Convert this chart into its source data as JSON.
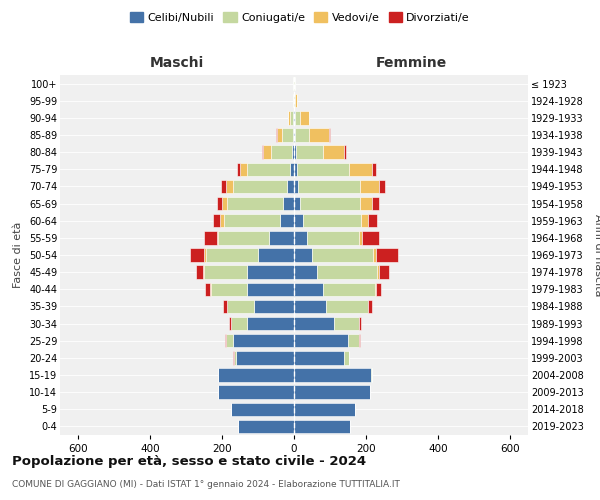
{
  "age_groups": [
    "0-4",
    "5-9",
    "10-14",
    "15-19",
    "20-24",
    "25-29",
    "30-34",
    "35-39",
    "40-44",
    "45-49",
    "50-54",
    "55-59",
    "60-64",
    "65-69",
    "70-74",
    "75-79",
    "80-84",
    "85-89",
    "90-94",
    "95-99",
    "100+"
  ],
  "birth_years": [
    "2019-2023",
    "2014-2018",
    "2009-2013",
    "2004-2008",
    "1999-2003",
    "1994-1998",
    "1989-1993",
    "1984-1988",
    "1979-1983",
    "1974-1978",
    "1969-1973",
    "1964-1968",
    "1959-1963",
    "1954-1958",
    "1949-1953",
    "1944-1948",
    "1939-1943",
    "1934-1938",
    "1929-1933",
    "1924-1928",
    "≤ 1923"
  ],
  "male": {
    "celibi": [
      155,
      175,
      210,
      210,
      160,
      170,
      130,
      110,
      130,
      130,
      100,
      70,
      40,
      30,
      20,
      10,
      5,
      3,
      2,
      1,
      1
    ],
    "coniugati": [
      0,
      0,
      1,
      2,
      8,
      20,
      45,
      75,
      100,
      120,
      145,
      140,
      155,
      155,
      150,
      120,
      60,
      30,
      10,
      2,
      1
    ],
    "vedovi": [
      0,
      0,
      0,
      0,
      0,
      0,
      0,
      1,
      2,
      3,
      5,
      5,
      10,
      15,
      20,
      20,
      20,
      15,
      5,
      1,
      0
    ],
    "divorziati": [
      0,
      0,
      0,
      0,
      1,
      2,
      5,
      10,
      15,
      20,
      40,
      35,
      20,
      15,
      12,
      8,
      3,
      2,
      1,
      0,
      0
    ]
  },
  "female": {
    "nubili": [
      155,
      170,
      210,
      215,
      140,
      150,
      110,
      90,
      80,
      65,
      50,
      35,
      25,
      18,
      12,
      8,
      5,
      3,
      2,
      1,
      1
    ],
    "coniugate": [
      0,
      0,
      1,
      3,
      12,
      30,
      70,
      115,
      145,
      165,
      170,
      145,
      160,
      165,
      170,
      145,
      75,
      40,
      15,
      3,
      1
    ],
    "vedove": [
      0,
      0,
      0,
      0,
      0,
      0,
      0,
      1,
      3,
      5,
      8,
      10,
      20,
      35,
      55,
      65,
      60,
      55,
      25,
      5,
      1
    ],
    "divorziate": [
      0,
      0,
      0,
      0,
      1,
      2,
      5,
      12,
      15,
      30,
      60,
      45,
      25,
      18,
      15,
      10,
      5,
      2,
      1,
      0,
      0
    ]
  },
  "colors": {
    "celibi": "#4472a8",
    "coniugati": "#c5d8a0",
    "vedovi": "#f0c060",
    "divorziati": "#cc2020"
  },
  "title": "Popolazione per età, sesso e stato civile - 2024",
  "subtitle": "COMUNE DI GAGGIANO (MI) - Dati ISTAT 1° gennaio 2024 - Elaborazione TUTTITALIA.IT",
  "xlabel_left": "Maschi",
  "xlabel_right": "Femmine",
  "ylabel_left": "Fasce di età",
  "ylabel_right": "Anni di nascita",
  "legend_labels": [
    "Celibi/Nubili",
    "Coniugati/e",
    "Vedovi/e",
    "Divorziati/e"
  ],
  "xlim": 650,
  "background_color": "#ffffff",
  "plot_bg": "#f0f0f0",
  "grid_color": "#cccccc"
}
